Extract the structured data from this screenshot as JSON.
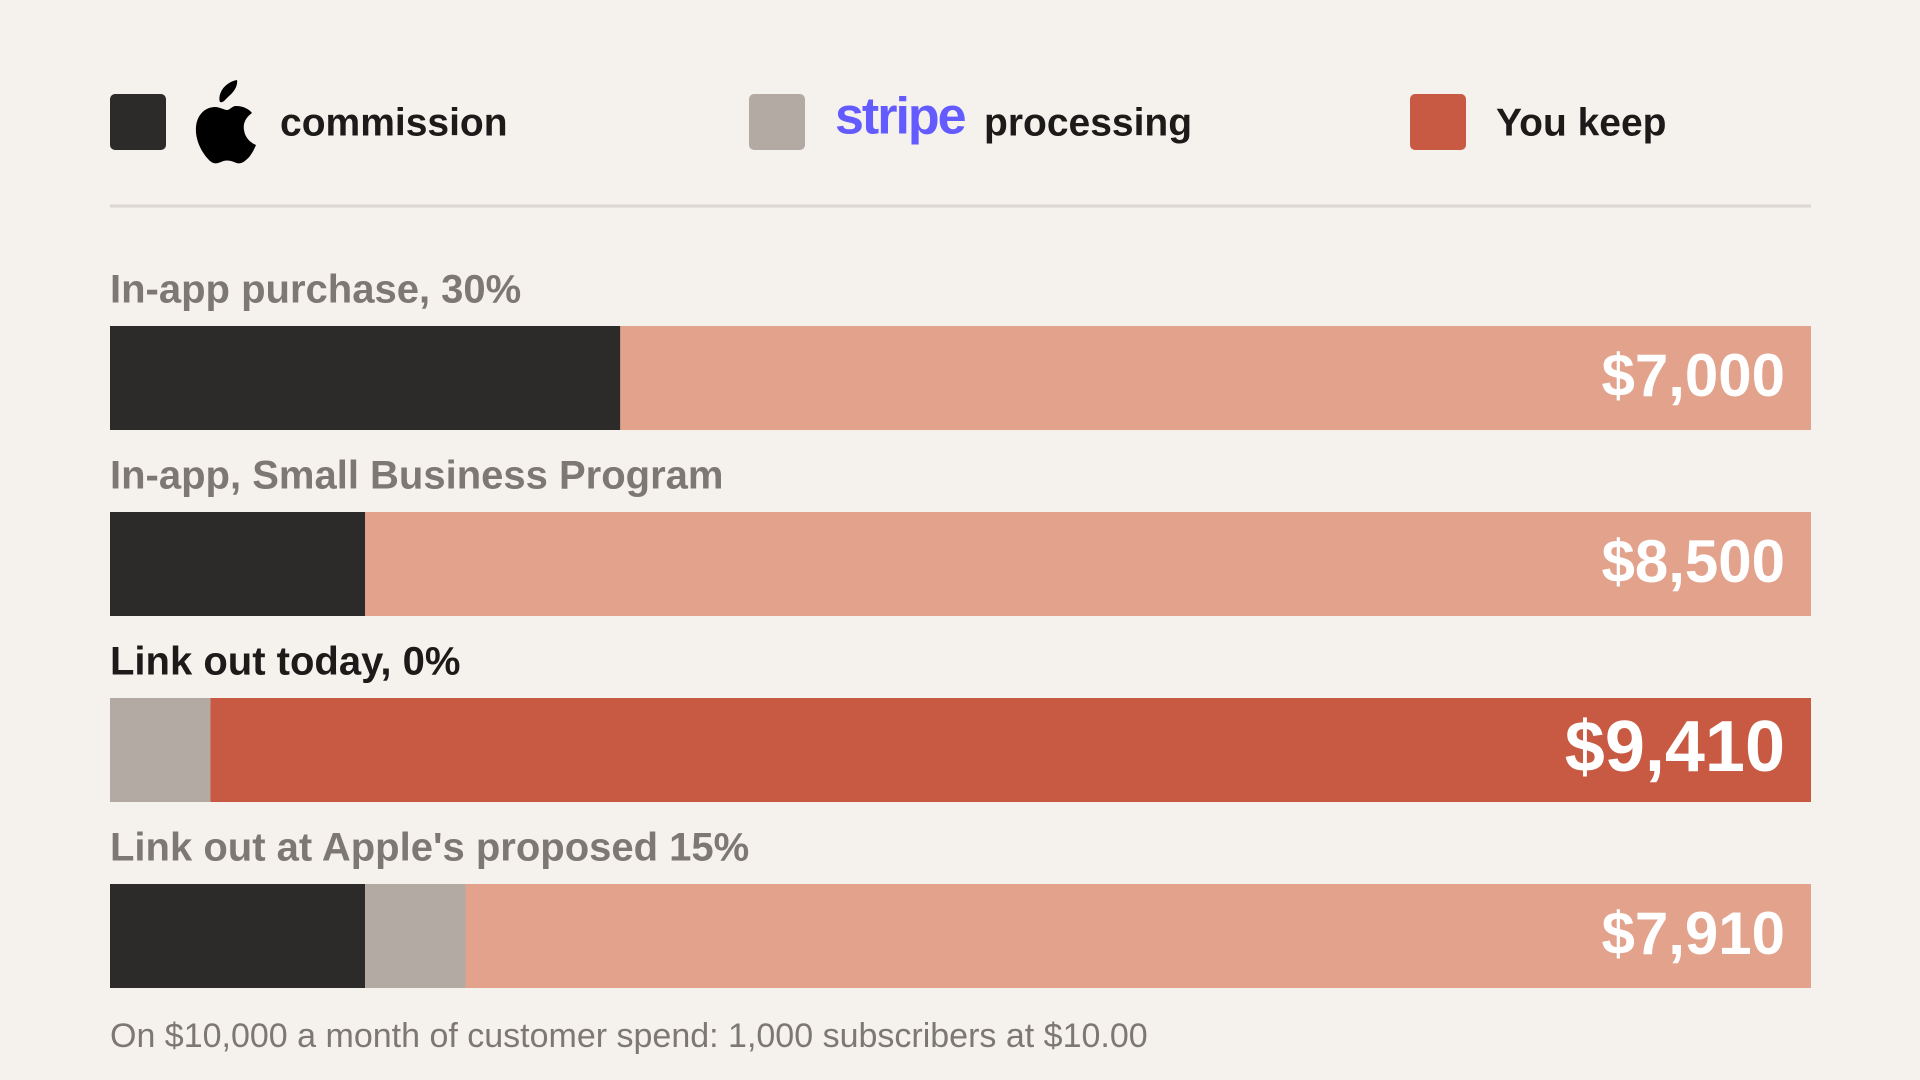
{
  "chart_data": {
    "type": "stacked-bar-horizontal",
    "categories": [
      "In-app purchase, 30%",
      "In-app, Small Business Program",
      "Link out today, 0%",
      "Link out at Apple's proposed 15%"
    ],
    "series": [
      {
        "name": "commission",
        "color": "#2d2b2a",
        "values": [
          3000,
          1500,
          null,
          1500
        ]
      },
      {
        "name": "processing",
        "brand": "stripe",
        "color": "#b3aba3",
        "values": [
          null,
          null,
          590,
          590
        ]
      },
      {
        "name": "You keep",
        "color": "#e2a28b",
        "highlight_color": "#c85a43",
        "values": [
          7000,
          8500,
          9410,
          7910
        ],
        "value_labels": [
          "$7,000",
          "$8,500",
          "$9,410",
          "$7,910"
        ]
      }
    ],
    "highlight": 2,
    "xlim": [
      0,
      10000
    ],
    "footnote": "On $10,000 a month of customer spend: 1,000 subscribers at $10.00"
  }
}
